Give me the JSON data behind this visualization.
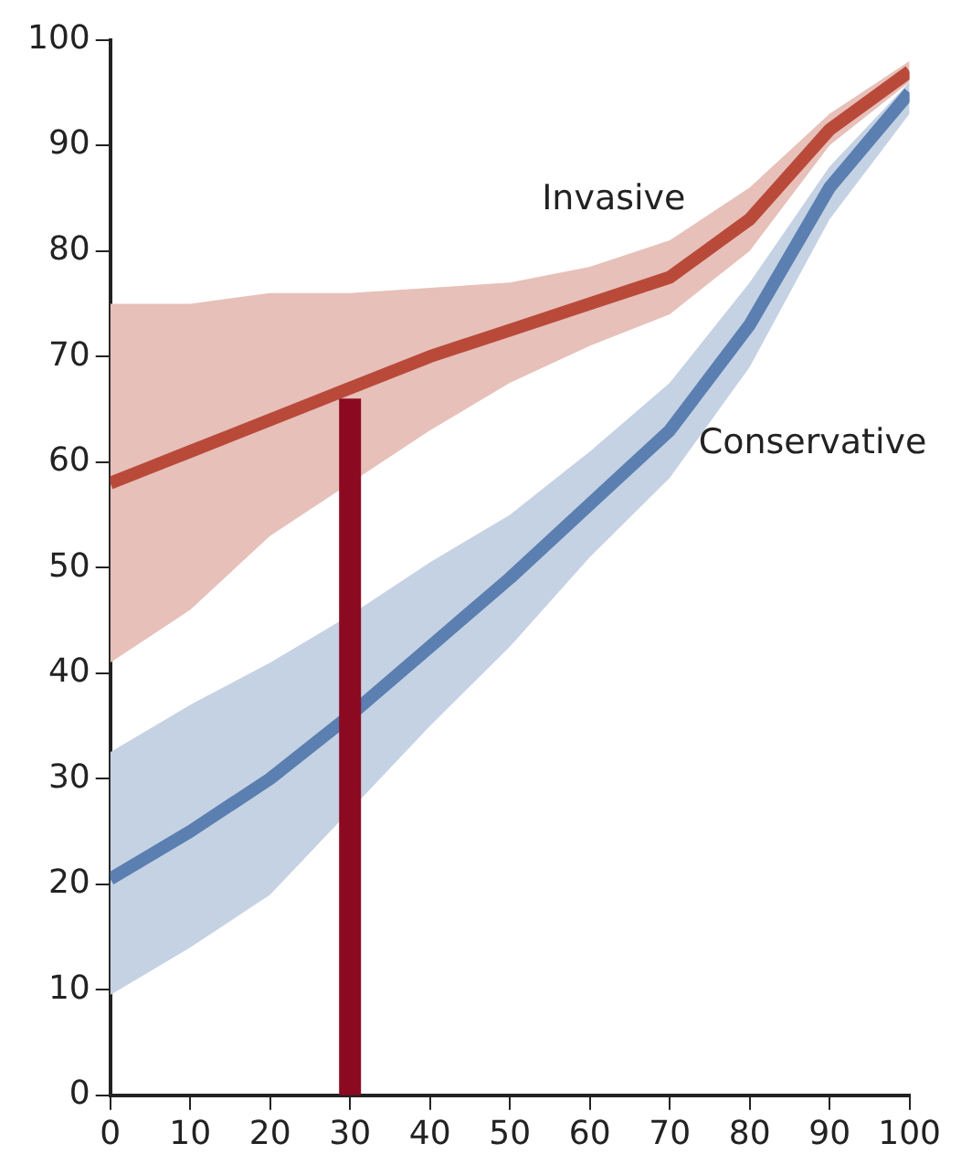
{
  "chart_data": {
    "type": "line",
    "x": [
      0,
      10,
      20,
      30,
      40,
      50,
      60,
      70,
      80,
      90,
      100
    ],
    "xlim": [
      0,
      100
    ],
    "xticks": [
      0,
      10,
      20,
      30,
      40,
      50,
      60,
      70,
      80,
      90,
      100
    ],
    "ylim": [
      0,
      100
    ],
    "yticks": [
      0,
      10,
      20,
      30,
      40,
      50,
      60,
      70,
      80,
      90,
      100
    ],
    "grid": false,
    "legend": false,
    "marker": "none",
    "line_style": "solid",
    "series": [
      {
        "name": "Invasive",
        "color": "#b94a3a",
        "values": [
          58,
          61,
          64,
          67,
          70,
          72.5,
          75,
          77.5,
          83,
          91.5,
          97
        ],
        "lower": [
          41,
          46,
          53,
          58,
          63,
          67.5,
          71,
          74,
          80,
          90,
          96
        ],
        "upper": [
          75,
          75,
          76,
          76,
          76.5,
          77,
          78.5,
          81,
          86,
          93,
          98
        ]
      },
      {
        "name": "Conservative",
        "color": "#5a7fb0",
        "values": [
          20.5,
          25,
          30,
          36,
          42.5,
          49,
          56,
          63,
          73,
          86,
          95
        ],
        "lower": [
          9.5,
          14,
          19,
          27,
          35,
          42.5,
          51,
          58.5,
          69,
          83,
          93
        ],
        "upper": [
          32.5,
          37,
          41,
          45.5,
          50.5,
          55,
          61,
          67.5,
          77,
          88,
          96
        ]
      },
      {
        "type": "line",
        "color": "#8b0a22",
        "x": [
          30,
          30
        ],
        "values": [
          0,
          66
        ]
      }
    ]
  }
}
